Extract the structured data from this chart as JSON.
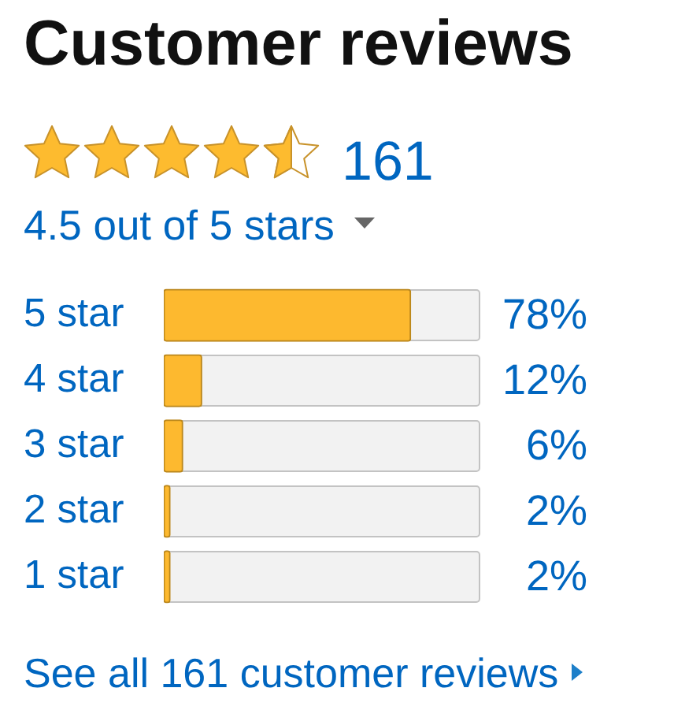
{
  "chart_data": {
    "type": "bar",
    "title": "Customer reviews",
    "annotations": [
      "161",
      "4.5 out of 5 stars",
      "See all 161 customer reviews"
    ],
    "orientation": "horizontal",
    "categories": [
      "5 star",
      "4 star",
      "3 star",
      "2 star",
      "1 star"
    ],
    "values": [
      78,
      12,
      6,
      2,
      2
    ],
    "color": "#fdb92f",
    "value_labels": [
      "78%",
      "12%",
      "6%",
      "2%",
      "2%"
    ],
    "xlim": [
      0,
      100
    ],
    "tick_labels": "y"
  }
}
